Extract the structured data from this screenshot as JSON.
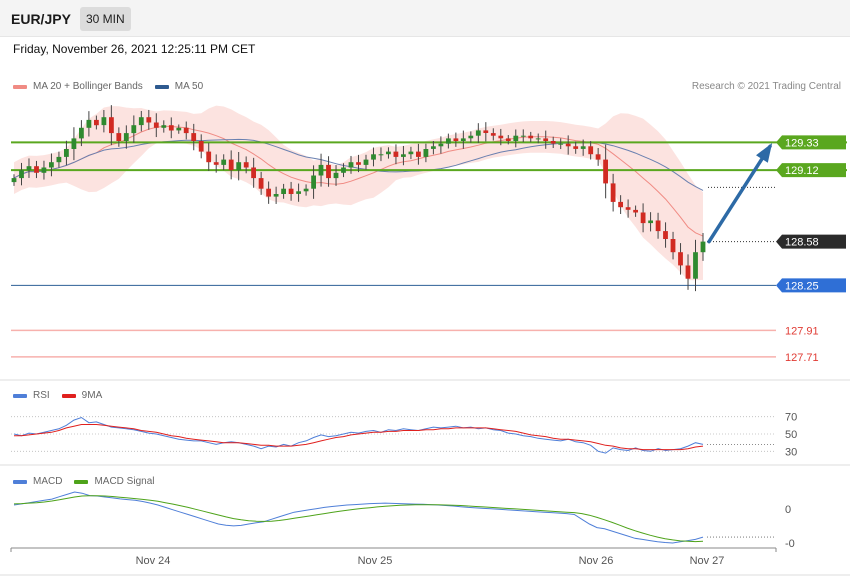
{
  "header": {
    "symbol": "EUR/JPY",
    "timeframe": "30 MIN"
  },
  "datetime": "Friday, November 26, 2021 12:25:11 PM CET",
  "credit": "Research © 2021 Trading Central",
  "legends": {
    "main": [
      {
        "label": "MA 20 + Bollinger Bands",
        "color": "#f08b84"
      },
      {
        "label": "MA 50",
        "color": "#2e5a8f"
      }
    ],
    "rsi": [
      {
        "label": "RSI",
        "color": "#4f7fd8"
      },
      {
        "label": "9MA",
        "color": "#e0201e"
      }
    ],
    "macd": [
      {
        "label": "MACD",
        "color": "#4f7fd8"
      },
      {
        "label": "MACD Signal",
        "color": "#4ea31a"
      }
    ]
  },
  "chart_data": [
    {
      "type": "candlestick",
      "ylim": [
        127.55,
        129.65
      ],
      "current_price": 128.58,
      "levels": [
        {
          "value": 129.33,
          "label": "129.33",
          "kind": "resistance",
          "color": "#5aa71f"
        },
        {
          "value": 129.12,
          "label": "129.12",
          "kind": "resistance",
          "color": "#5aa71f"
        },
        {
          "value": 128.58,
          "label": "128.58",
          "kind": "current",
          "color": "#2b2b2b"
        },
        {
          "value": 128.25,
          "label": "128.25",
          "kind": "pivot",
          "color": "#2f6fd6"
        },
        {
          "value": 127.91,
          "label": "127.91",
          "kind": "support",
          "color": "#e03a33"
        },
        {
          "value": 127.71,
          "label": "127.71",
          "kind": "support",
          "color": "#e03a33"
        }
      ],
      "forecast_arrow": {
        "from": 128.58,
        "to": 129.33
      },
      "close_series": [
        129.06,
        129.12,
        129.15,
        129.1,
        129.14,
        129.18,
        129.22,
        129.28,
        129.36,
        129.44,
        129.5,
        129.46,
        129.52,
        129.4,
        129.34,
        129.4,
        129.46,
        129.52,
        129.48,
        129.44,
        129.46,
        129.42,
        129.44,
        129.4,
        129.34,
        129.26,
        129.18,
        129.16,
        129.2,
        129.12,
        129.18,
        129.14,
        129.06,
        128.98,
        128.92,
        128.94,
        128.98,
        128.94,
        128.96,
        128.98,
        129.08,
        129.16,
        129.06,
        129.1,
        129.14,
        129.18,
        129.16,
        129.2,
        129.24,
        129.24,
        129.26,
        129.22,
        129.24,
        129.26,
        129.22,
        129.28,
        129.3,
        129.32,
        129.36,
        129.34,
        129.36,
        129.38,
        129.42,
        129.4,
        129.38,
        129.36,
        129.34,
        129.38,
        129.38,
        129.36,
        129.36,
        129.34,
        129.32,
        129.32,
        129.3,
        129.28,
        129.3,
        129.24,
        129.2,
        129.02,
        128.88,
        128.84,
        128.82,
        128.8,
        128.72,
        128.74,
        128.66,
        128.6,
        128.5,
        128.4,
        128.3,
        128.5,
        128.58
      ],
      "x_ticks": [
        "Nov 24",
        "Nov 25",
        "Nov 26",
        "Nov 27"
      ]
    },
    {
      "type": "line",
      "name": "RSI panel",
      "ylim": [
        20,
        80
      ],
      "y_ticks": [
        70,
        50,
        30
      ],
      "rsi": [
        50,
        48,
        51,
        50,
        52,
        54,
        56,
        60,
        66,
        69,
        63,
        64,
        61,
        58,
        57,
        56,
        55,
        53,
        51,
        50,
        48,
        46,
        44,
        43,
        42,
        42,
        40,
        38,
        40,
        41,
        40,
        38,
        36,
        33,
        36,
        35,
        38,
        36,
        40,
        42,
        46,
        49,
        47,
        48,
        50,
        52,
        51,
        53,
        54,
        52,
        55,
        54,
        56,
        55,
        54,
        56,
        58,
        57,
        58,
        59,
        57,
        58,
        56,
        57,
        55,
        54,
        51,
        50,
        48,
        47,
        45,
        44,
        43,
        42,
        44,
        41,
        40,
        37,
        30,
        28,
        34,
        32,
        31,
        34,
        31,
        30,
        33,
        31,
        32,
        33,
        36,
        40,
        38
      ],
      "ma9": [
        48,
        48,
        49,
        50,
        51,
        52,
        54,
        57,
        59,
        61,
        61,
        61,
        60,
        59,
        58,
        57,
        56,
        54,
        53,
        52,
        50,
        48,
        47,
        45,
        44,
        43,
        42,
        41,
        40,
        40,
        40,
        39,
        38,
        37,
        37,
        36,
        36,
        36,
        37,
        38,
        40,
        42,
        44,
        46,
        47,
        49,
        50,
        51,
        52,
        52,
        53,
        53,
        54,
        54,
        54,
        55,
        55,
        56,
        56,
        57,
        57,
        57,
        57,
        57,
        56,
        55,
        54,
        53,
        51,
        49,
        48,
        47,
        45,
        44,
        44,
        43,
        42,
        41,
        39,
        37,
        36,
        34,
        33,
        33,
        32,
        32,
        32,
        32,
        32,
        32,
        33,
        35,
        36
      ]
    },
    {
      "type": "line",
      "name": "MACD panel",
      "y_ticks": [
        "0",
        "-0"
      ],
      "macd": [
        0.04,
        0.045,
        0.05,
        0.055,
        0.06,
        0.065,
        0.075,
        0.085,
        0.095,
        0.09,
        0.08,
        0.078,
        0.074,
        0.07,
        0.066,
        0.063,
        0.06,
        0.055,
        0.048,
        0.04,
        0.03,
        0.02,
        0.01,
        0.0,
        -0.01,
        -0.02,
        -0.03,
        -0.04,
        -0.045,
        -0.048,
        -0.046,
        -0.04,
        -0.035,
        -0.03,
        -0.02,
        -0.01,
        0.0,
        0.01,
        0.015,
        0.02,
        0.025,
        0.03,
        0.034,
        0.037,
        0.04,
        0.042,
        0.044,
        0.046,
        0.047,
        0.048,
        0.047,
        0.046,
        0.045,
        0.044,
        0.043,
        0.042,
        0.04,
        0.038,
        0.036,
        0.033,
        0.03,
        0.028,
        0.026,
        0.024,
        0.022,
        0.02,
        0.018,
        0.016,
        0.014,
        0.012,
        0.01,
        0.008,
        0.006,
        0.004,
        0.0,
        -0.02,
        -0.04,
        -0.055,
        -0.06,
        -0.07,
        -0.08,
        -0.09,
        -0.1,
        -0.105,
        -0.11,
        -0.115,
        -0.118,
        -0.12,
        -0.115,
        -0.11,
        -0.105,
        -0.095
      ],
      "signal": [
        0.045,
        0.046,
        0.048,
        0.05,
        0.053,
        0.057,
        0.062,
        0.068,
        0.074,
        0.078,
        0.079,
        0.079,
        0.078,
        0.076,
        0.073,
        0.07,
        0.067,
        0.064,
        0.06,
        0.056,
        0.05,
        0.044,
        0.037,
        0.03,
        0.022,
        0.014,
        0.006,
        -0.002,
        -0.01,
        -0.017,
        -0.022,
        -0.026,
        -0.028,
        -0.029,
        -0.028,
        -0.025,
        -0.021,
        -0.016,
        -0.011,
        -0.006,
        -0.001,
        0.004,
        0.009,
        0.014,
        0.018,
        0.022,
        0.026,
        0.029,
        0.032,
        0.035,
        0.037,
        0.039,
        0.04,
        0.041,
        0.041,
        0.041,
        0.041,
        0.04,
        0.039,
        0.038,
        0.036,
        0.034,
        0.032,
        0.03,
        0.028,
        0.026,
        0.024,
        0.022,
        0.02,
        0.018,
        0.016,
        0.014,
        0.012,
        0.01,
        0.008,
        0.004,
        -0.003,
        -0.012,
        -0.022,
        -0.033,
        -0.045,
        -0.057,
        -0.068,
        -0.078,
        -0.087,
        -0.095,
        -0.102,
        -0.107,
        -0.111,
        -0.113,
        -0.114,
        -0.113
      ]
    }
  ]
}
